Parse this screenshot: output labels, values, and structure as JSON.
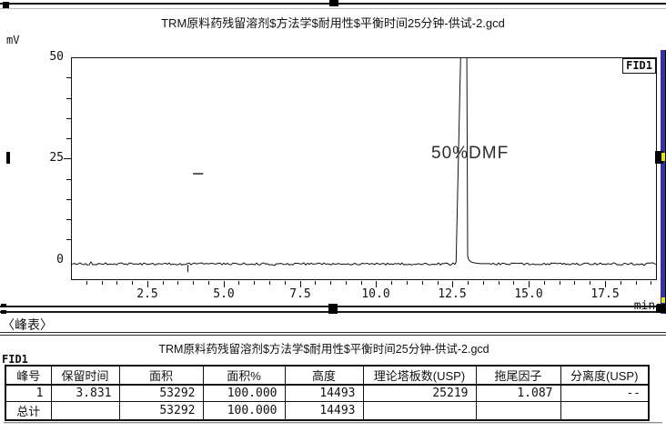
{
  "chromatogram": {
    "title": "TRM原料药残留溶剂$方法学$耐用性$平衡时间25分钟-供试-2.gcd",
    "y_unit": "mV",
    "x_unit": "min.",
    "detector_label": "FID1",
    "annotation": "50%DMF"
  },
  "chart_data": {
    "type": "line",
    "title": "TRM原料药残留溶剂$方法学$耐用性$平衡时间25分钟-供试-2.gcd",
    "ylabel": "mV",
    "xlabel": "min.",
    "legend": [
      "FID1"
    ],
    "xlim": [
      0,
      19.2
    ],
    "ylim": [
      -5,
      50
    ],
    "x_tick_values": [
      2.5,
      5.0,
      7.5,
      10.0,
      12.5,
      15.0,
      17.5
    ],
    "x_tick_labels": [
      "2.5",
      "5.0",
      "7.5",
      "10.0",
      "12.5",
      "15.0",
      "17.5"
    ],
    "x_minor_step": 0.5,
    "y_tick_values": [
      0,
      25,
      50
    ],
    "y_tick_labels": [
      "0",
      "25",
      "50"
    ],
    "y_minor_step": 5,
    "grid": "off",
    "annotations": [
      {
        "text": "50%DMF",
        "x_min": 12.3,
        "y_mv": 27
      }
    ],
    "trace": {
      "baseline_mv": -1.0,
      "noise_amplitude_mv": 0.5,
      "retention_marker_min": 3.831,
      "cursor_mark": {
        "x_min": 4.15,
        "y_mv": 21.5
      },
      "main_peak": {
        "start_min": 12.62,
        "apex_left_min": 12.78,
        "apex_right_min": 12.97,
        "tail_end_min": 13.6,
        "clipped_above_mv": 50,
        "label": "50%DMF"
      }
    }
  },
  "peak_table": {
    "section_label": "〈峰表〉",
    "channel": "FID1",
    "title": "TRM原料药残留溶剂$方法学$耐用性$平衡时间25分钟-供试-2.gcd",
    "columns": [
      "峰号",
      "保留时间",
      "面积",
      "面积%",
      "高度",
      "理论塔板数(USP)",
      "拖尾因子",
      "分离度(USP)"
    ],
    "rows": [
      [
        "1",
        "3.831",
        "53292",
        "100.000",
        "14493",
        "25219",
        "1.087",
        "--"
      ],
      [
        "总计",
        "",
        "53292",
        "100.000",
        "14493",
        "",
        "",
        ""
      ]
    ]
  },
  "colors": {
    "trace": "#111111",
    "frame": "#111111",
    "scrollbar_track": "#3434a0",
    "scrollbar_thumb": "#000000",
    "scrollbar_accent": "#e6e600",
    "divider_gray": "#909090"
  }
}
